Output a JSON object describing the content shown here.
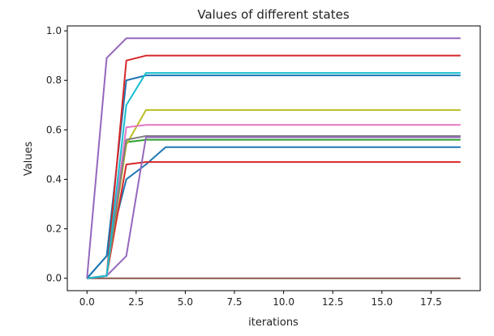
{
  "chart_data": {
    "type": "line",
    "title": "Values of different states",
    "xlabel": "iterations",
    "ylabel": "Values",
    "xlim": [
      -1.0,
      20.0
    ],
    "ylim": [
      -0.05,
      1.02
    ],
    "xticks": [
      0.0,
      2.5,
      5.0,
      7.5,
      10.0,
      12.5,
      15.0,
      17.5
    ],
    "xtick_labels": [
      "0.0",
      "2.5",
      "5.0",
      "7.5",
      "10.0",
      "12.5",
      "15.0",
      "17.5"
    ],
    "yticks": [
      0.0,
      0.2,
      0.4,
      0.6,
      0.8,
      1.0
    ],
    "ytick_labels": [
      "0.0",
      "0.2",
      "0.4",
      "0.6",
      "0.8",
      "1.0"
    ],
    "grid": false,
    "legend": "none",
    "x": [
      0,
      1,
      2,
      3,
      4,
      5,
      6,
      7,
      8,
      9,
      10,
      11,
      12,
      13,
      14,
      15,
      16,
      17,
      18,
      19
    ],
    "series": [
      {
        "color": "#8c564b",
        "values": [
          0,
          0,
          0,
          0,
          0,
          0,
          0,
          0,
          0,
          0,
          0,
          0,
          0,
          0,
          0,
          0,
          0,
          0,
          0,
          0
        ]
      },
      {
        "color": "#1f77b4",
        "values": [
          0,
          0.09,
          0.4,
          0.46,
          0.53,
          0.53,
          0.53,
          0.53,
          0.53,
          0.53,
          0.53,
          0.53,
          0.53,
          0.53,
          0.53,
          0.53,
          0.53,
          0.53,
          0.53,
          0.53
        ]
      },
      {
        "color": "#1f77b4",
        "values": [
          0,
          0.09,
          0.8,
          0.82,
          0.82,
          0.82,
          0.82,
          0.82,
          0.82,
          0.82,
          0.82,
          0.82,
          0.82,
          0.82,
          0.82,
          0.82,
          0.82,
          0.82,
          0.82,
          0.82
        ]
      },
      {
        "color": "#d62728",
        "values": [
          0,
          0.01,
          0.46,
          0.47,
          0.47,
          0.47,
          0.47,
          0.47,
          0.47,
          0.47,
          0.47,
          0.47,
          0.47,
          0.47,
          0.47,
          0.47,
          0.47,
          0.47,
          0.47,
          0.47
        ]
      },
      {
        "color": "#d62728",
        "values": [
          0,
          0.01,
          0.88,
          0.9,
          0.9,
          0.9,
          0.9,
          0.9,
          0.9,
          0.9,
          0.9,
          0.9,
          0.9,
          0.9,
          0.9,
          0.9,
          0.9,
          0.9,
          0.9,
          0.9
        ]
      },
      {
        "color": "#2ca02c",
        "values": [
          0,
          0.01,
          0.55,
          0.56,
          0.56,
          0.56,
          0.56,
          0.56,
          0.56,
          0.56,
          0.56,
          0.56,
          0.56,
          0.56,
          0.56,
          0.56,
          0.56,
          0.56,
          0.56,
          0.56
        ]
      },
      {
        "color": "#bcbd22",
        "values": [
          0,
          0.01,
          0.54,
          0.68,
          0.68,
          0.68,
          0.68,
          0.68,
          0.68,
          0.68,
          0.68,
          0.68,
          0.68,
          0.68,
          0.68,
          0.68,
          0.68,
          0.68,
          0.68,
          0.68
        ]
      },
      {
        "color": "#e377c2",
        "values": [
          0,
          0.01,
          0.61,
          0.62,
          0.62,
          0.62,
          0.62,
          0.62,
          0.62,
          0.62,
          0.62,
          0.62,
          0.62,
          0.62,
          0.62,
          0.62,
          0.62,
          0.62,
          0.62,
          0.62
        ]
      },
      {
        "color": "#7f7f7f",
        "values": [
          0,
          0.01,
          0.56,
          0.575,
          0.575,
          0.575,
          0.575,
          0.575,
          0.575,
          0.575,
          0.575,
          0.575,
          0.575,
          0.575,
          0.575,
          0.575,
          0.575,
          0.575,
          0.575,
          0.575
        ]
      },
      {
        "color": "#9467bd",
        "values": [
          0,
          0.01,
          0.09,
          0.57,
          0.57,
          0.57,
          0.57,
          0.57,
          0.57,
          0.57,
          0.57,
          0.57,
          0.57,
          0.57,
          0.57,
          0.57,
          0.57,
          0.57,
          0.57,
          0.57
        ]
      },
      {
        "color": "#17becf",
        "values": [
          0,
          0.01,
          0.7,
          0.83,
          0.83,
          0.83,
          0.83,
          0.83,
          0.83,
          0.83,
          0.83,
          0.83,
          0.83,
          0.83,
          0.83,
          0.83,
          0.83,
          0.83,
          0.83,
          0.83
        ]
      },
      {
        "color": "#9467bd",
        "values": [
          0,
          0.89,
          0.97,
          0.97,
          0.97,
          0.97,
          0.97,
          0.97,
          0.97,
          0.97,
          0.97,
          0.97,
          0.97,
          0.97,
          0.97,
          0.97,
          0.97,
          0.97,
          0.97,
          0.97
        ]
      }
    ]
  }
}
